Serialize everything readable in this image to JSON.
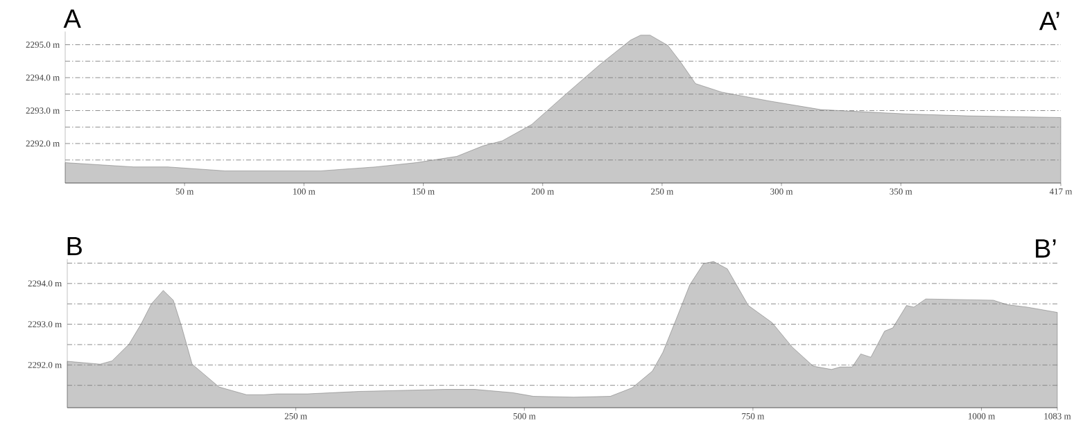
{
  "chart_data": [
    {
      "type": "area",
      "title": "A",
      "annotations": [
        "A’"
      ],
      "grid": "y",
      "x": [
        0,
        28.7,
        43,
        67,
        107,
        130,
        147,
        164,
        175,
        183,
        195.4,
        209.7,
        224,
        236.8,
        241,
        245,
        252.4,
        258,
        264,
        275,
        295,
        316.5,
        338,
        352,
        378,
        417
      ],
      "series": [
        {
          "color": "#c8c8c8",
          "values": [
            2291.42,
            2291.29,
            2291.29,
            2291.17,
            2291.17,
            2291.29,
            2291.42,
            2291.61,
            2291.93,
            2292.08,
            2292.58,
            2293.5,
            2294.4,
            2295.14,
            2295.29,
            2295.29,
            2294.98,
            2294.45,
            2293.82,
            2293.56,
            2293.29,
            2293.03,
            2292.95,
            2292.9,
            2292.84,
            2292.79
          ]
        }
      ],
      "xlim": [
        0,
        417
      ],
      "ylim": [
        2290.8,
        2295.4
      ],
      "xticks": [
        {
          "value": 50,
          "label": "50 m"
        },
        {
          "value": 100,
          "label": "100 m"
        },
        {
          "value": 150,
          "label": "150 m"
        },
        {
          "value": 200,
          "label": "200 m"
        },
        {
          "value": 250,
          "label": "250 m"
        },
        {
          "value": 300,
          "label": "300 m"
        },
        {
          "value": 350,
          "label": "350 m"
        },
        {
          "value": 417,
          "label": "417 m"
        }
      ],
      "yticks": [
        {
          "value": 2291.5,
          "label": null
        },
        {
          "value": 2292,
          "label": "2292.0 m"
        },
        {
          "value": 2292.5,
          "label": null
        },
        {
          "value": 2293,
          "label": "2293.0 m"
        },
        {
          "value": 2293.5,
          "label": null
        },
        {
          "value": 2294,
          "label": "2294.0 m"
        },
        {
          "value": 2294.5,
          "label": null
        },
        {
          "value": 2295,
          "label": "2295.0 m"
        }
      ]
    },
    {
      "type": "area",
      "title": "B",
      "annotations": [
        "B’"
      ],
      "grid": "y",
      "x": [
        0,
        36,
        49,
        67.5,
        80.6,
        92,
        105,
        116,
        125,
        136.6,
        166,
        196,
        215,
        230,
        263,
        319,
        413,
        446,
        487,
        510,
        554,
        594,
        618,
        640,
        651.5,
        666,
        681,
        696,
        707,
        722,
        745,
        771,
        793,
        816,
        836,
        845.5,
        858.6,
        868,
        879,
        894,
        903,
        918,
        926,
        939,
        1013,
        1028,
        1050,
        1083
      ],
      "series": [
        {
          "color": "#c8c8c8",
          "values": [
            2292.09,
            2292.02,
            2292.1,
            2292.51,
            2293.0,
            2293.5,
            2293.83,
            2293.59,
            2292.95,
            2292.02,
            2291.46,
            2291.27,
            2291.27,
            2291.29,
            2291.29,
            2291.35,
            2291.4,
            2291.4,
            2291.32,
            2291.23,
            2291.21,
            2291.23,
            2291.44,
            2291.85,
            2292.31,
            2293.12,
            2293.97,
            2294.49,
            2294.54,
            2294.36,
            2293.46,
            2293.04,
            2292.44,
            2291.97,
            2291.89,
            2291.95,
            2291.95,
            2292.27,
            2292.19,
            2292.83,
            2292.91,
            2293.46,
            2293.42,
            2293.62,
            2293.59,
            2293.48,
            2293.42,
            2293.29
          ]
        }
      ],
      "xlim": [
        0,
        1083
      ],
      "ylim": [
        2290.95,
        2294.6
      ],
      "xticks": [
        {
          "value": 250,
          "label": "250 m"
        },
        {
          "value": 500,
          "label": "500 m"
        },
        {
          "value": 750,
          "label": "750 m"
        },
        {
          "value": 1000,
          "label": "1000 m"
        },
        {
          "value": 1083,
          "label": "1083 m"
        }
      ],
      "yticks": [
        {
          "value": 2291.5,
          "label": null
        },
        {
          "value": 2292,
          "label": "2292.0 m"
        },
        {
          "value": 2292.5,
          "label": null
        },
        {
          "value": 2293,
          "label": "2293.0 m"
        },
        {
          "value": 2293.5,
          "label": null
        },
        {
          "value": 2294,
          "label": "2294.0 m"
        },
        {
          "value": 2294.5,
          "label": null
        }
      ]
    }
  ]
}
